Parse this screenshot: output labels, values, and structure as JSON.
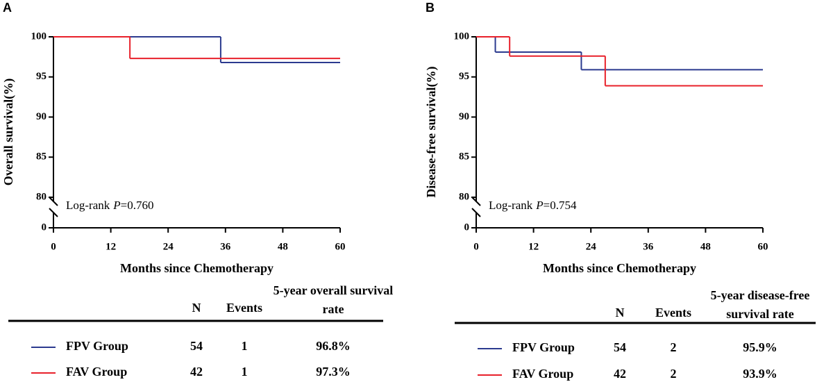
{
  "chart_data": [
    {
      "type": "line",
      "step": true,
      "panel": "A",
      "ylabel": "Overall survival(%)",
      "xlabel": "Months since Chemotherapy",
      "xlim": [
        0,
        60
      ],
      "xticks": [
        0,
        12,
        24,
        36,
        48,
        60
      ],
      "ylim": [
        0,
        100
      ],
      "yticks": [
        0,
        80,
        85,
        90,
        95,
        100
      ],
      "y_break": [
        0,
        80
      ],
      "annotation": {
        "text": "Log-rank",
        "italic": "P",
        "rest": "=0.760"
      },
      "series": [
        {
          "name": "FPV Group",
          "color": "#2b3a8f",
          "x": [
            0,
            35,
            60
          ],
          "values": [
            100,
            96.8,
            96.8
          ]
        },
        {
          "name": "FAV Group",
          "color": "#e8202a",
          "x": [
            0,
            16,
            60
          ],
          "values": [
            100,
            97.3,
            97.3
          ]
        }
      ],
      "table": {
        "columns": [
          "N",
          "Events",
          "5-year overall survival rate"
        ],
        "rows": [
          [
            "54",
            "1",
            "96.8%"
          ],
          [
            "42",
            "1",
            "97.3%"
          ]
        ]
      }
    },
    {
      "type": "line",
      "step": true,
      "panel": "B",
      "ylabel": "Disease-free survival(%)",
      "xlabel": "Months since Chemotherapy",
      "xlim": [
        0,
        60
      ],
      "xticks": [
        0,
        12,
        24,
        36,
        48,
        60
      ],
      "ylim": [
        0,
        100
      ],
      "yticks": [
        0,
        80,
        85,
        90,
        95,
        100
      ],
      "y_break": [
        0,
        80
      ],
      "annotation": {
        "text": "Log-rank",
        "italic": "P",
        "rest": "=0.754"
      },
      "series": [
        {
          "name": "FPV Group",
          "color": "#2b3a8f",
          "x": [
            0,
            4,
            22,
            60
          ],
          "values": [
            100,
            98.1,
            95.9,
            95.9
          ]
        },
        {
          "name": "FAV Group",
          "color": "#e8202a",
          "x": [
            0,
            7,
            27,
            60
          ],
          "values": [
            100,
            97.6,
            93.9,
            93.9
          ]
        }
      ],
      "table": {
        "columns": [
          "N",
          "Events",
          "5-year disease-free survival rate"
        ],
        "rows": [
          [
            "54",
            "2",
            "95.9%"
          ],
          [
            "42",
            "2",
            "93.9%"
          ]
        ]
      }
    }
  ]
}
